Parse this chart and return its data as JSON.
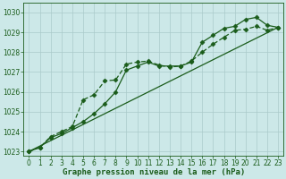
{
  "title": "Graphe pression niveau de la mer (hPa)",
  "bg_color": "#cce8e8",
  "line_color": "#1a5c1a",
  "grid_color": "#aacaca",
  "xlim": [
    -0.5,
    23.5
  ],
  "ylim": [
    1022.8,
    1030.5
  ],
  "yticks": [
    1023,
    1024,
    1025,
    1026,
    1027,
    1028,
    1029,
    1030
  ],
  "xticks": [
    0,
    1,
    2,
    3,
    4,
    5,
    6,
    7,
    8,
    9,
    10,
    11,
    12,
    13,
    14,
    15,
    16,
    17,
    18,
    19,
    20,
    21,
    22,
    23
  ],
  "series1_x": [
    0,
    1,
    2,
    3,
    4,
    5,
    6,
    7,
    8,
    9,
    10,
    11,
    12,
    13,
    14,
    15,
    16,
    17,
    18,
    19,
    20,
    21,
    22,
    23
  ],
  "series1_y": [
    1023.0,
    1023.2,
    1023.7,
    1023.9,
    1024.2,
    1024.5,
    1024.9,
    1025.4,
    1026.0,
    1027.1,
    1027.3,
    1027.5,
    1027.3,
    1027.3,
    1027.3,
    1027.5,
    1028.5,
    1028.85,
    1029.2,
    1029.3,
    1029.65,
    1029.75,
    1029.35,
    1029.25
  ],
  "series2_x": [
    0,
    1,
    2,
    3,
    4,
    5,
    6,
    7,
    8,
    9,
    10,
    11,
    12,
    13,
    14,
    15,
    16,
    17,
    18,
    19,
    20,
    21,
    22,
    23
  ],
  "series2_y": [
    1023.0,
    1023.2,
    1023.75,
    1024.0,
    1024.25,
    1025.6,
    1025.85,
    1026.55,
    1026.6,
    1027.4,
    1027.5,
    1027.55,
    1027.35,
    1027.25,
    1027.3,
    1027.55,
    1028.0,
    1028.4,
    1028.75,
    1029.1,
    1029.15,
    1029.3,
    1029.1,
    1029.25
  ],
  "trend_x": [
    0,
    23
  ],
  "trend_y": [
    1023.0,
    1029.25
  ],
  "marker": "D",
  "markersize": 2.5,
  "linewidth": 0.9,
  "tick_fontsize": 5.5,
  "label_fontsize": 6.5,
  "label_fontweight": "bold"
}
